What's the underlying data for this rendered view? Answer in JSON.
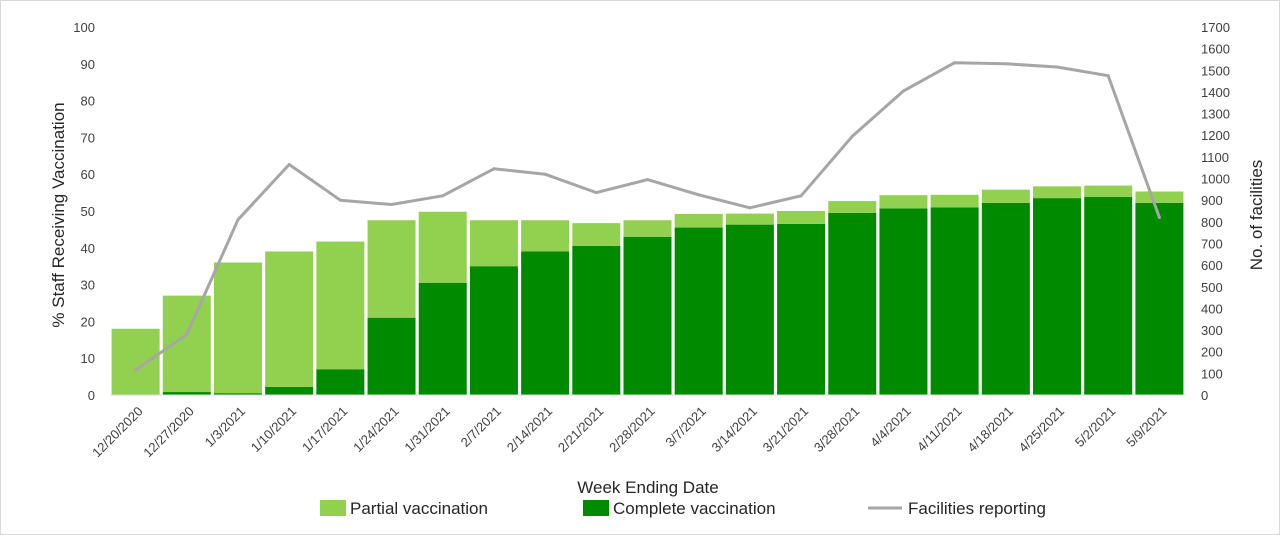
{
  "chart_data": {
    "type": "bar",
    "stacked": true,
    "title": "",
    "xlabel": "Week Ending Date",
    "ylabel": "% Staff Receiving Vaccination",
    "y2label": "No.  of facilities",
    "ylim": [
      0,
      100
    ],
    "yticks": [
      "0",
      "10",
      "20",
      "30",
      "40",
      "50",
      "60",
      "70",
      "80",
      "90",
      "100"
    ],
    "y2lim": [
      0,
      1700
    ],
    "y2ticks": [
      "0",
      "100",
      "200",
      "300",
      "400",
      "500",
      "600",
      "700",
      "800",
      "900",
      "1000",
      "1100",
      "1200",
      "1300",
      "1400",
      "1500",
      "1600",
      "1700"
    ],
    "categories": [
      "12/20/2020",
      "12/27/2020",
      "1/3/2021",
      "1/10/2021",
      "1/17/2021",
      "1/24/2021",
      "1/31/2021",
      "2/7/2021",
      "2/14/2021",
      "2/21/2021",
      "2/28/2021",
      "3/7/2021",
      "3/14/2021",
      "3/21/2021",
      "3/28/2021",
      "4/4/2021",
      "4/11/2021",
      "4/18/2021",
      "4/25/2021",
      "5/2/2021",
      "5/9/2021"
    ],
    "series": [
      {
        "name": "Complete vaccination",
        "axis": "left",
        "kind": "bar",
        "color": "#008a00",
        "values": [
          0,
          0.8,
          0.5,
          2.2,
          7,
          21,
          30.5,
          35,
          39,
          40.5,
          43,
          45.5,
          46.3,
          46.5,
          49.5,
          50.7,
          51,
          52.2,
          53.5,
          53.8,
          52.2
        ]
      },
      {
        "name": "Partial vaccination",
        "axis": "left",
        "kind": "bar",
        "color": "#92d050",
        "values": [
          18,
          26.2,
          35.5,
          36.8,
          34.7,
          26.5,
          19.3,
          12.5,
          8.5,
          6.2,
          4.5,
          3.7,
          3,
          3.5,
          3.2,
          3.6,
          3.4,
          3.6,
          3.2,
          3.1,
          3.1
        ]
      },
      {
        "name": "Facilities reporting",
        "axis": "right",
        "kind": "line",
        "color": "#a6a6a6",
        "values": [
          115,
          280,
          810,
          1065,
          900,
          880,
          920,
          1045,
          1020,
          935,
          995,
          925,
          865,
          920,
          1195,
          1405,
          1535,
          1530,
          1515,
          1475,
          820
        ]
      }
    ],
    "legend": {
      "position": "bottom",
      "items": [
        "Partial vaccination",
        "Complete vaccination",
        "Facilities reporting"
      ]
    },
    "grid": false
  }
}
